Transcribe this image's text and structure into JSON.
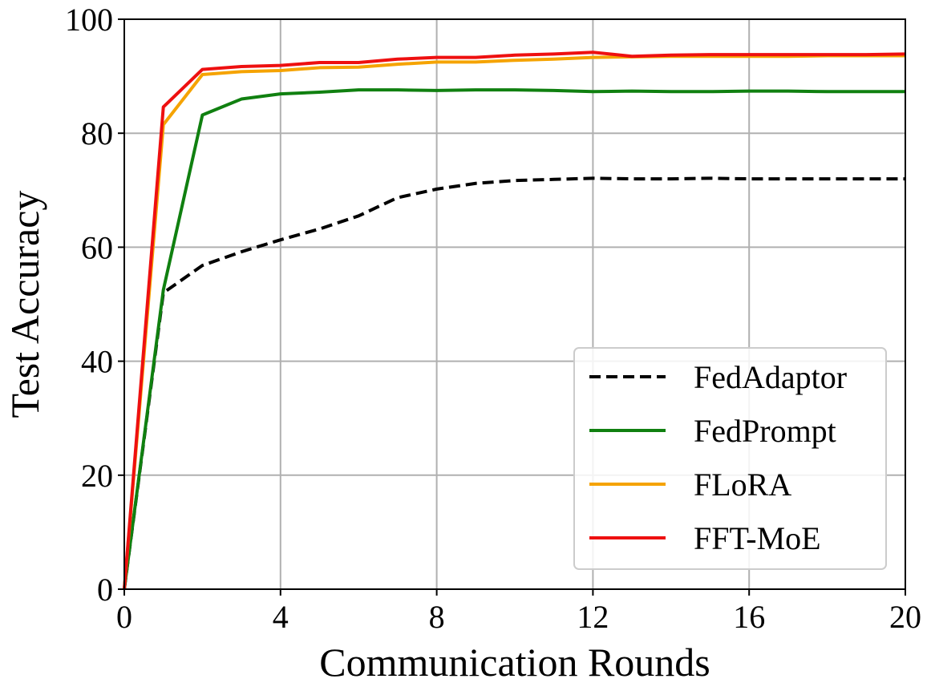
{
  "chart_data": {
    "type": "line",
    "title": "",
    "xlabel": "Communication Rounds",
    "ylabel": "Test Accuracy",
    "xlim": [
      0,
      20
    ],
    "ylim": [
      0,
      100
    ],
    "xticks": [
      "0",
      "4",
      "8",
      "12",
      "16",
      "20"
    ],
    "yticks": [
      "0",
      "20",
      "40",
      "60",
      "80",
      "100"
    ],
    "grid": true,
    "legend_position": "lower-right",
    "x": [
      0,
      1,
      2,
      3,
      4,
      5,
      6,
      7,
      8,
      9,
      10,
      11,
      12,
      13,
      14,
      15,
      16,
      17,
      18,
      19,
      20
    ],
    "series": [
      {
        "name": "FedAdaptor",
        "color": "#000000",
        "style": "dashed",
        "values": [
          0,
          52.0,
          56.8,
          59.2,
          61.3,
          63.2,
          65.5,
          68.7,
          70.2,
          71.2,
          71.7,
          71.9,
          72.1,
          72.0,
          72.0,
          72.1,
          72.0,
          72.0,
          72.0,
          72.0,
          72.0
        ]
      },
      {
        "name": "FedPrompt",
        "color": "#108010",
        "style": "solid",
        "values": [
          0,
          52.5,
          83.2,
          86.0,
          86.9,
          87.2,
          87.6,
          87.6,
          87.5,
          87.6,
          87.6,
          87.5,
          87.3,
          87.4,
          87.3,
          87.3,
          87.4,
          87.4,
          87.3,
          87.3,
          87.3
        ]
      },
      {
        "name": "FLoRA",
        "color": "#f5a300",
        "style": "solid",
        "values": [
          0,
          81.5,
          90.3,
          90.8,
          91.0,
          91.5,
          91.6,
          92.1,
          92.5,
          92.5,
          92.8,
          93.0,
          93.3,
          93.4,
          93.5,
          93.5,
          93.5,
          93.5,
          93.6,
          93.6,
          93.6
        ]
      },
      {
        "name": "FFT-MoE",
        "color": "#ee1010",
        "style": "solid",
        "values": [
          0,
          84.6,
          91.2,
          91.7,
          91.9,
          92.4,
          92.4,
          93.0,
          93.3,
          93.3,
          93.7,
          93.9,
          94.2,
          93.5,
          93.7,
          93.8,
          93.8,
          93.8,
          93.8,
          93.8,
          93.9
        ]
      }
    ]
  }
}
